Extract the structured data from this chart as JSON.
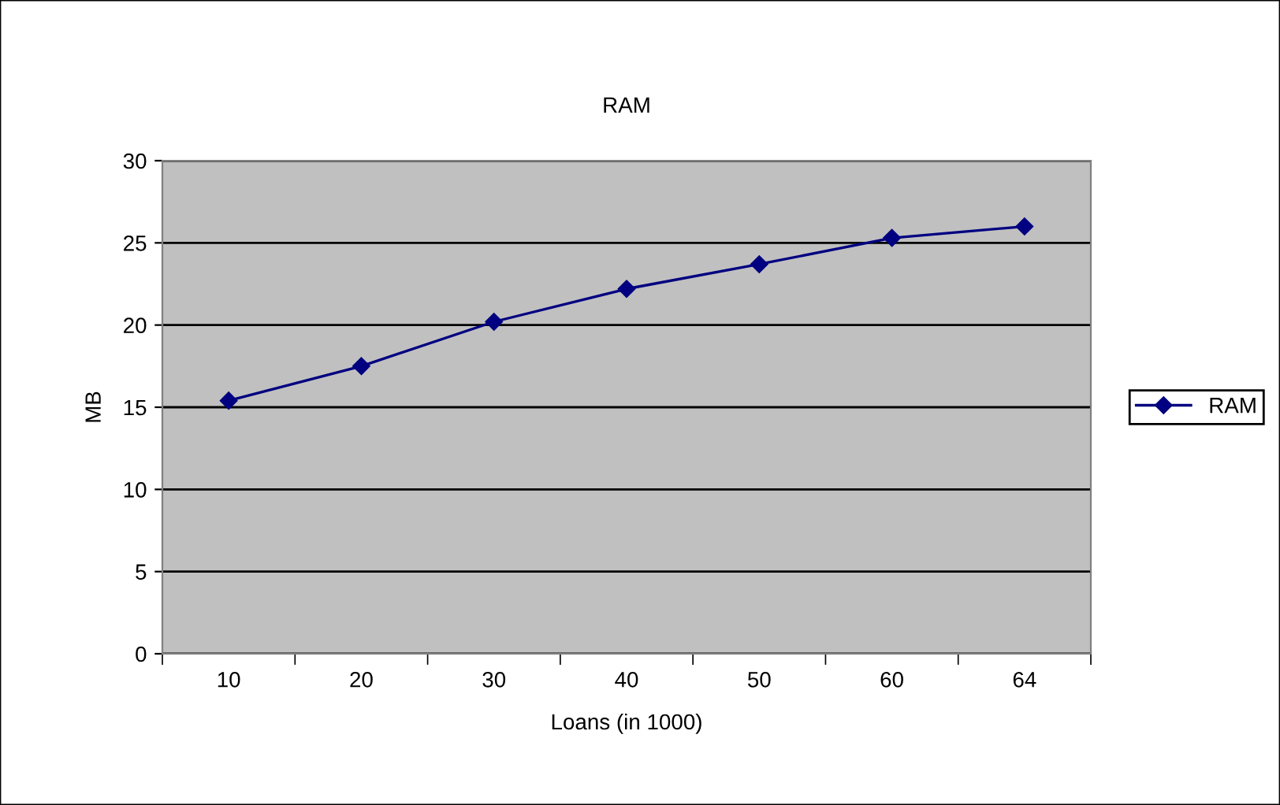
{
  "chart_data": {
    "type": "line",
    "title": "RAM",
    "xlabel": "Loans (in 1000)",
    "ylabel": "MB",
    "categories": [
      "10",
      "20",
      "30",
      "40",
      "50",
      "60",
      "64"
    ],
    "series": [
      {
        "name": "RAM",
        "color": "#000080",
        "values": [
          15.4,
          17.5,
          20.2,
          22.2,
          23.7,
          25.3,
          26.0
        ]
      }
    ],
    "ylim": [
      0,
      30
    ],
    "yticks": [
      0,
      5,
      10,
      15,
      20,
      25,
      30
    ],
    "grid": "y",
    "legend": "right",
    "marker": "diamond",
    "line_style": "solid"
  }
}
